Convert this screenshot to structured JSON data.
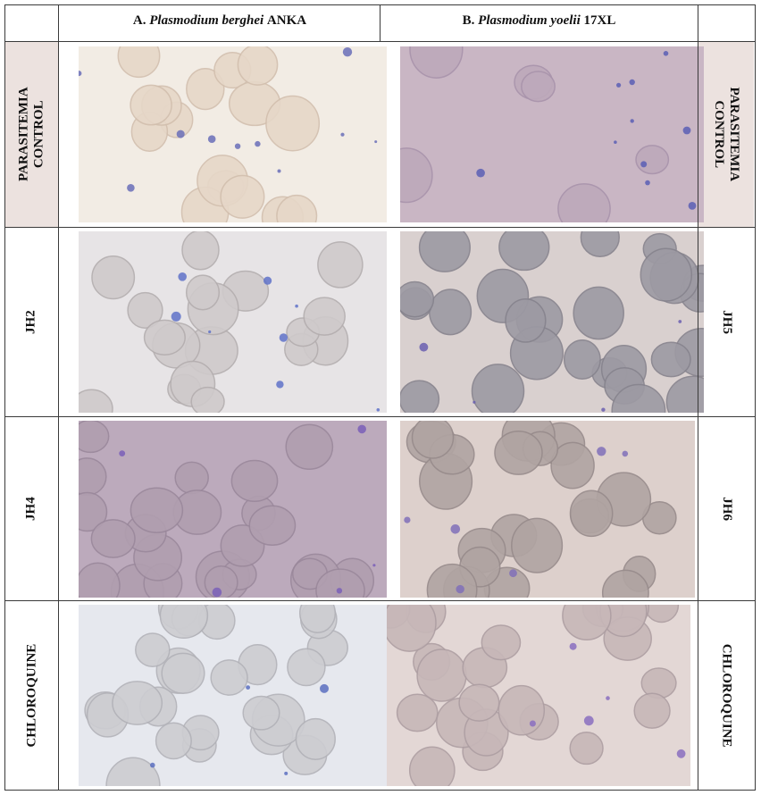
{
  "headers": {
    "a_prefix": "A. ",
    "a_species": "Plasmodium berghei",
    "a_suffix": " ANKA",
    "b_prefix": "B. ",
    "b_species": "Plasmodium yoelii",
    "b_suffix": " 17XL"
  },
  "rows": [
    {
      "left_label": [
        "PARASITEMIA",
        "CONTROL"
      ],
      "right_label": [
        "PARASITEMIA",
        "CONTROL"
      ]
    },
    {
      "left_label": [
        "JH2"
      ],
      "right_label": [
        "JH5"
      ]
    },
    {
      "left_label": [
        "JH4"
      ],
      "right_label": [
        "JH6"
      ]
    },
    {
      "left_label": [
        "CHLOROQUINE"
      ],
      "right_label": [
        "CHLOROQUINE"
      ]
    }
  ],
  "panel_palettes": {
    "r0a": {
      "bg": "#f2ece4",
      "cell": "#e6d7c8",
      "edge": "#d2bfae",
      "parasite": "#6a6fb8"
    },
    "r0b": {
      "bg": "#c9b6c4",
      "cell": "#bda9bb",
      "edge": "#a893ab",
      "parasite": "#5a5fb5"
    },
    "r1a": {
      "bg": "#e7e4e6",
      "cell": "#cfcacb",
      "edge": "#b4aeaf",
      "parasite": "#5f72c8"
    },
    "r1b": {
      "bg": "#d9d0cf",
      "cell": "#9d9aa3",
      "edge": "#86838d",
      "parasite": "#6a5fb0"
    },
    "r2a": {
      "bg": "#bcaabc",
      "cell": "#b09eaf",
      "edge": "#9a889b",
      "parasite": "#7a5fb8"
    },
    "r2b": {
      "bg": "#ddd0cc",
      "cell": "#b0a4a2",
      "edge": "#978b8b",
      "parasite": "#8070b8"
    },
    "r3a": {
      "bg": "#e6e8ee",
      "cell": "#cdcdd1",
      "edge": "#b2b2b8",
      "parasite": "#5b6fc0"
    },
    "r3b": {
      "bg": "#e3d7d5",
      "cell": "#c7b7b8",
      "edge": "#ad9ea2",
      "parasite": "#8a6fc0"
    }
  }
}
